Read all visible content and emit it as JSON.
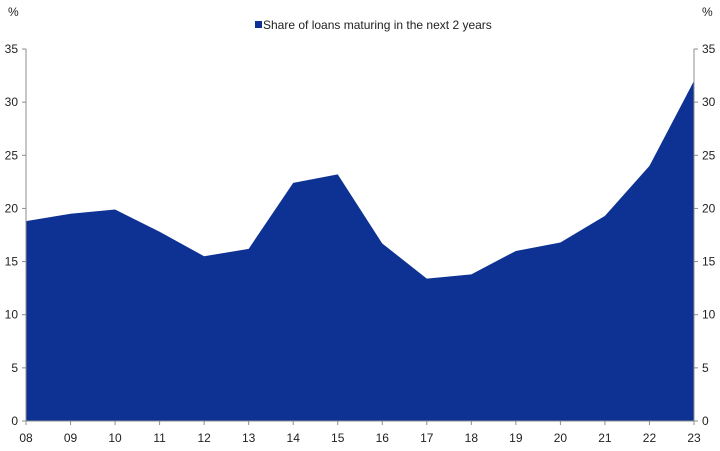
{
  "chart_data": {
    "type": "area",
    "categories": [
      "08",
      "09",
      "10",
      "11",
      "12",
      "13",
      "14",
      "15",
      "16",
      "17",
      "18",
      "19",
      "20",
      "21",
      "22",
      "23"
    ],
    "series": [
      {
        "name": "Share of loans maturing in the next 2 years",
        "values": [
          18.8,
          19.5,
          19.9,
          17.8,
          15.5,
          16.2,
          22.4,
          23.2,
          16.7,
          13.4,
          13.8,
          16.0,
          16.8,
          19.3,
          24.0,
          32.0
        ]
      }
    ],
    "y_left_unit": "%",
    "y_right_unit": "%",
    "ylim": [
      0,
      35
    ],
    "y_ticks": [
      0,
      5,
      10,
      15,
      20,
      25,
      30,
      35
    ],
    "legend_position": "top-center",
    "grid": false,
    "colors": {
      "area": "#0D3293",
      "axis": "#8c8c8c"
    }
  }
}
